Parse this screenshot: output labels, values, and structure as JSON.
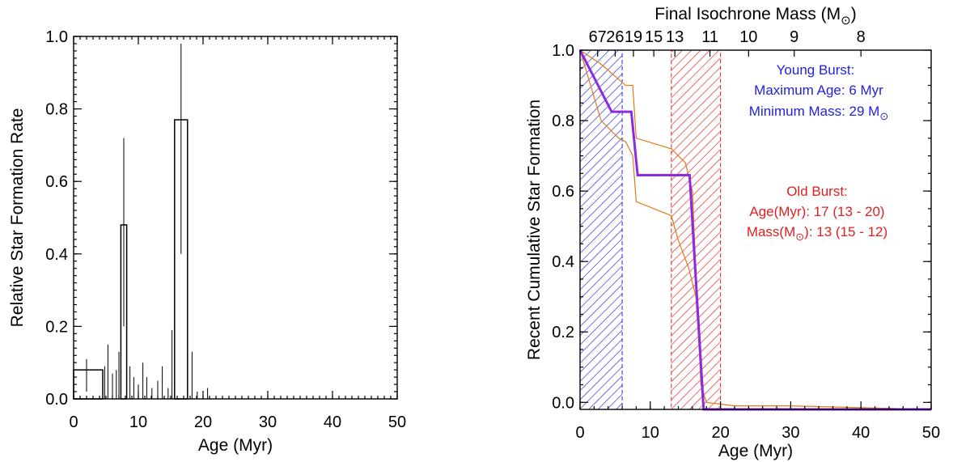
{
  "colors": {
    "young": "#2222dd",
    "old": "#e02020",
    "cumulative": "#8a2be2",
    "envelope": "#e07b1a",
    "axes": "#000000"
  },
  "chart_data": [
    {
      "type": "bar",
      "title": "",
      "xlabel": "Age (Myr)",
      "ylabel": "Relative Star Formation Rate",
      "xlim": [
        0,
        50
      ],
      "ylim": [
        0,
        1.0
      ],
      "x_ticks": [
        0,
        10,
        20,
        30,
        40,
        50
      ],
      "y_ticks": [
        0.0,
        0.2,
        0.4,
        0.6,
        0.8,
        1.0
      ],
      "x_tick_labels": [
        "0",
        "10",
        "20",
        "30",
        "40",
        "50"
      ],
      "y_tick_labels": [
        "0.0",
        "0.2",
        "0.4",
        "0.6",
        "0.8",
        "1.0"
      ],
      "bars": [
        {
          "x0": 0,
          "x1": 4.5,
          "value": 0.08
        },
        {
          "x0": 7.3,
          "x1": 8.2,
          "value": 0.48
        },
        {
          "x0": 15.6,
          "x1": 17.6,
          "value": 0.77
        }
      ],
      "error_bars": [
        {
          "x": 2.0,
          "low": 0.02,
          "high": 0.11
        },
        {
          "x": 4.8,
          "low": 0.0,
          "high": 0.09
        },
        {
          "x": 5.3,
          "low": 0.0,
          "high": 0.15
        },
        {
          "x": 6.0,
          "low": 0.0,
          "high": 0.07
        },
        {
          "x": 6.6,
          "low": 0.0,
          "high": 0.08
        },
        {
          "x": 7.0,
          "low": 0.0,
          "high": 0.13
        },
        {
          "x": 7.75,
          "low": 0.2,
          "high": 0.72
        },
        {
          "x": 8.7,
          "low": 0.0,
          "high": 0.09
        },
        {
          "x": 9.3,
          "low": 0.0,
          "high": 0.06
        },
        {
          "x": 10.0,
          "low": 0.0,
          "high": 0.04
        },
        {
          "x": 10.7,
          "low": 0.0,
          "high": 0.1
        },
        {
          "x": 11.3,
          "low": 0.0,
          "high": 0.06
        },
        {
          "x": 12.1,
          "low": 0.0,
          "high": 0.03
        },
        {
          "x": 13.0,
          "low": 0.0,
          "high": 0.05
        },
        {
          "x": 13.7,
          "low": 0.0,
          "high": 0.09
        },
        {
          "x": 14.6,
          "low": 0.0,
          "high": 0.03
        },
        {
          "x": 15.2,
          "low": 0.0,
          "high": 0.19
        },
        {
          "x": 16.6,
          "low": 0.4,
          "high": 0.98
        },
        {
          "x": 18.3,
          "low": 0.0,
          "high": 0.13
        },
        {
          "x": 19.1,
          "low": 0.0,
          "high": 0.02
        },
        {
          "x": 20.7,
          "low": 0.0,
          "high": 0.03
        }
      ]
    },
    {
      "type": "line",
      "title": "",
      "xlabel": "Age (Myr)",
      "ylabel": "Recent Cumulative Star Formation",
      "top_axis_label": "Final Isochrone Mass (M",
      "top_axis_label_tail": ")",
      "top_axis_label_symbol": "⊙",
      "top_ticks": [
        {
          "x": 2.5,
          "label": "67"
        },
        {
          "x": 5.0,
          "label": "26"
        },
        {
          "x": 7.6,
          "label": "19"
        },
        {
          "x": 10.5,
          "label": "15"
        },
        {
          "x": 13.5,
          "label": "13"
        },
        {
          "x": 18.5,
          "label": "11"
        },
        {
          "x": 24.0,
          "label": "10"
        },
        {
          "x": 30.5,
          "label": "9"
        },
        {
          "x": 40.0,
          "label": "8"
        }
      ],
      "xlim": [
        0,
        50
      ],
      "ylim": [
        -0.02,
        1.0
      ],
      "x_ticks": [
        0,
        10,
        20,
        30,
        40,
        50
      ],
      "y_ticks": [
        0.0,
        0.2,
        0.4,
        0.6,
        0.8,
        1.0
      ],
      "x_tick_labels": [
        "0",
        "10",
        "20",
        "30",
        "40",
        "50"
      ],
      "y_tick_labels": [
        "0.0",
        "0.2",
        "0.4",
        "0.6",
        "0.8",
        "1.0"
      ],
      "shaded_regions": [
        {
          "name": "Young Burst",
          "x0": 0,
          "x1": 6
        },
        {
          "name": "Old Burst",
          "x0": 13,
          "x1": 20
        }
      ],
      "series": [
        {
          "role": "best fit",
          "x": [
            0,
            4.5,
            7.3,
            8.2,
            15.6,
            17.6,
            50
          ],
          "y": [
            1.0,
            0.825,
            0.825,
            0.645,
            0.645,
            -0.02,
            -0.02
          ]
        },
        {
          "role": "upper envelope",
          "x": [
            0,
            3,
            6.5,
            7.5,
            8,
            13,
            15,
            16,
            17.2,
            18,
            22,
            30,
            50
          ],
          "y": [
            1.0,
            0.96,
            0.9,
            0.9,
            0.75,
            0.72,
            0.68,
            0.6,
            0.05,
            0.0,
            -0.01,
            -0.01,
            -0.02
          ],
          "style": "thin"
        },
        {
          "role": "lower envelope",
          "x": [
            0,
            3,
            5.5,
            6.5,
            7.5,
            8,
            13,
            14,
            15.5,
            16.5,
            17.5,
            18,
            50
          ],
          "y": [
            1.0,
            0.8,
            0.75,
            0.74,
            0.7,
            0.57,
            0.53,
            0.46,
            0.38,
            0.3,
            -0.02,
            -0.02,
            -0.02
          ],
          "style": "thin"
        }
      ],
      "annotations": {
        "young": {
          "title": "Young Burst:",
          "line1": "Maximum Age: 6 Myr",
          "line2": "Minimum Mass: 29 M",
          "line2_symbol": "⊙"
        },
        "old": {
          "title": "Old Burst:",
          "line1": "Age(Myr): 17 (13 - 20)",
          "line2_prefix": "Mass(M",
          "line2_symbol": "⊙",
          "line2_suffix": "): 13 (15 - 12)"
        }
      }
    }
  ]
}
